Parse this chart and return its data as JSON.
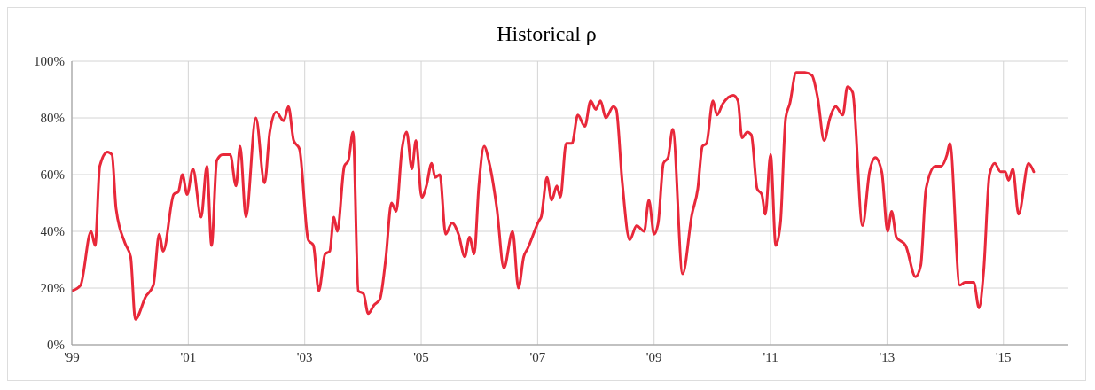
{
  "chart_data": {
    "type": "line",
    "title": "Historical ρ",
    "x": [
      1999.0,
      1999.15,
      1999.33,
      1999.4,
      1999.48,
      1999.61,
      1999.69,
      1999.76,
      1999.91,
      2000.01,
      2000.09,
      2000.27,
      2000.4,
      2000.5,
      2000.57,
      2000.75,
      2000.83,
      2000.9,
      2000.98,
      2001.08,
      2001.22,
      2001.32,
      2001.4,
      2001.49,
      2001.59,
      2001.72,
      2001.82,
      2001.89,
      2001.99,
      2002.16,
      2002.31,
      2002.4,
      2002.51,
      2002.64,
      2002.72,
      2002.81,
      2002.91,
      2003.06,
      2003.15,
      2003.24,
      2003.35,
      2003.43,
      2003.5,
      2003.56,
      2003.68,
      2003.75,
      2003.83,
      2003.92,
      2004.01,
      2004.09,
      2004.19,
      2004.29,
      2004.39,
      2004.49,
      2004.57,
      2004.67,
      2004.75,
      2004.84,
      2004.91,
      2005.01,
      2005.09,
      2005.18,
      2005.24,
      2005.32,
      2005.42,
      2005.53,
      2005.64,
      2005.75,
      2005.83,
      2005.91,
      2005.99,
      2006.08,
      2006.17,
      2006.3,
      2006.42,
      2006.57,
      2006.67,
      2006.76,
      2006.83,
      2007.03,
      2007.06,
      2007.16,
      2007.24,
      2007.33,
      2007.39,
      2007.49,
      2007.59,
      2007.69,
      2007.81,
      2007.91,
      2008.0,
      2008.08,
      2008.17,
      2008.3,
      2008.35,
      2008.45,
      2008.58,
      2008.7,
      2008.83,
      2008.91,
      2009.0,
      2009.07,
      2009.16,
      2009.24,
      2009.32,
      2009.49,
      2009.65,
      2009.75,
      2009.83,
      2009.9,
      2010.01,
      2010.08,
      2010.18,
      2010.36,
      2010.44,
      2010.51,
      2010.6,
      2010.67,
      2010.77,
      2010.85,
      2010.91,
      2011.0,
      2011.09,
      2011.17,
      2011.26,
      2011.33,
      2011.44,
      2011.59,
      2011.71,
      2011.81,
      2011.92,
      2012.02,
      2012.12,
      2012.24,
      2012.32,
      2012.41,
      2012.58,
      2012.7,
      2012.8,
      2012.91,
      2013.01,
      2013.08,
      2013.16,
      2013.32,
      2013.49,
      2013.58,
      2013.67,
      2013.83,
      2013.93,
      2014.03,
      2014.08,
      2014.25,
      2014.34,
      2014.49,
      2014.58,
      2014.66,
      2014.76,
      2014.85,
      2014.95,
      2015.03,
      2015.09,
      2015.16,
      2015.26,
      2015.43,
      2015.52
    ],
    "series": [
      {
        "color": "#e8283a",
        "values": [
          19,
          21,
          40,
          35,
          63,
          68,
          67,
          48,
          36,
          31,
          9,
          17,
          21,
          39,
          33,
          53,
          54,
          60,
          53,
          62,
          45,
          63,
          35,
          65,
          67,
          67,
          56,
          70,
          45,
          80,
          57,
          75,
          82,
          79,
          84,
          72,
          69,
          37,
          35,
          19,
          32,
          33,
          45,
          40,
          63,
          65,
          75,
          19,
          18,
          11,
          14,
          16,
          30,
          50,
          47,
          69,
          75,
          62,
          72,
          52,
          56,
          64,
          59,
          60,
          39,
          43,
          39,
          31,
          38,
          32,
          56,
          70,
          64,
          48,
          27,
          40,
          20,
          31,
          34,
          44,
          45,
          59,
          51,
          56,
          52,
          71,
          71,
          81,
          77,
          86,
          83,
          86,
          80,
          84,
          83,
          58,
          37,
          42,
          40,
          51,
          39,
          43,
          64,
          66,
          76,
          25,
          46,
          55,
          70,
          71,
          86,
          81,
          85,
          88,
          86,
          73,
          75,
          74,
          55,
          53,
          46,
          67,
          35,
          43,
          80,
          85,
          96,
          96,
          95,
          87,
          72,
          80,
          84,
          81,
          91,
          89,
          42,
          61,
          66,
          61,
          40,
          47,
          38,
          35,
          24,
          28,
          55,
          63,
          63,
          67,
          71,
          21,
          22,
          22,
          13,
          26,
          60,
          64,
          61,
          61,
          58,
          62,
          46,
          64,
          61
        ]
      }
    ],
    "xlim": [
      1999,
      2016.1
    ],
    "xticks": [
      {
        "value": 1999,
        "label": "'99"
      },
      {
        "value": 2001,
        "label": "'01"
      },
      {
        "value": 2003,
        "label": "'03"
      },
      {
        "value": 2005,
        "label": "'05"
      },
      {
        "value": 2007,
        "label": "'07"
      },
      {
        "value": 2009,
        "label": "'09"
      },
      {
        "value": 2011,
        "label": "'11"
      },
      {
        "value": 2013,
        "label": "'13"
      },
      {
        "value": 2015,
        "label": "'15"
      }
    ],
    "ylim": [
      0,
      100
    ],
    "yticks": [
      {
        "value": 0,
        "label": "0%"
      },
      {
        "value": 20,
        "label": "20%"
      },
      {
        "value": 40,
        "label": "40%"
      },
      {
        "value": 60,
        "label": "60%"
      },
      {
        "value": 80,
        "label": "80%"
      },
      {
        "value": 100,
        "label": "100%"
      }
    ],
    "grid": true,
    "marker": "none",
    "line_style": "solid"
  }
}
